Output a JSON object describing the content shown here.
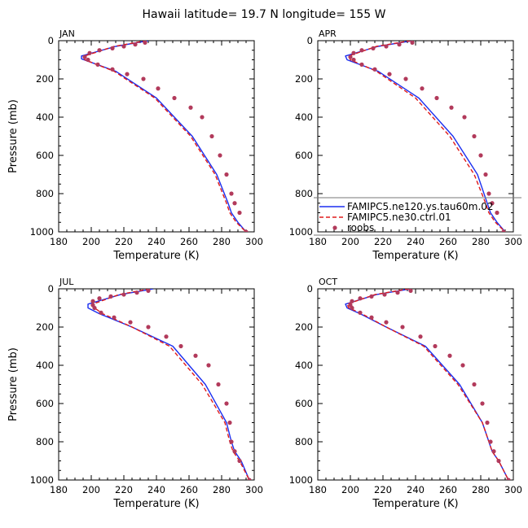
{
  "title": "Hawaii  latitude= 19.7 N longitude= 155 W",
  "colors": {
    "model_hi": "#1b2ef0",
    "model_lo": "#e01b1b",
    "obs": "#b23a5b"
  },
  "chart_data": [
    {
      "type": "line",
      "panel": "JAN",
      "xlabel": "Temperature (K)",
      "ylabel": "Pressure (mb)",
      "xlim": [
        180,
        300
      ],
      "ylim": [
        1000,
        0
      ],
      "xticks": [
        180,
        200,
        220,
        240,
        260,
        280,
        300
      ],
      "yticks": [
        0,
        200,
        400,
        600,
        800,
        1000
      ],
      "series": [
        {
          "name": "FAMIPC5.ne120.ys.tau60m.02",
          "style": "solid",
          "x": [
            235,
            215,
            194,
            194,
            215,
            240,
            262,
            277,
            284,
            286,
            290,
            295
          ],
          "y": [
            0,
            30,
            80,
            95,
            160,
            300,
            500,
            700,
            850,
            900,
            950,
            1000
          ]
        },
        {
          "name": "FAMIPC5.ne30.ctrl.01",
          "style": "dashed",
          "x": [
            234,
            214,
            196,
            196,
            214,
            239,
            261,
            276,
            283,
            285,
            289,
            295
          ],
          "y": [
            0,
            30,
            80,
            100,
            160,
            300,
            500,
            700,
            850,
            900,
            950,
            1000
          ]
        },
        {
          "name": "roobs",
          "style": "dots",
          "x": [
            233,
            227,
            220,
            213,
            205,
            199,
            196,
            198,
            204,
            213,
            222,
            232,
            241,
            251,
            261,
            268,
            274,
            279,
            283,
            286,
            288,
            291,
            295
          ],
          "y": [
            10,
            20,
            30,
            40,
            50,
            65,
            85,
            100,
            125,
            150,
            175,
            200,
            250,
            300,
            350,
            400,
            500,
            600,
            700,
            800,
            850,
            900,
            1000
          ]
        }
      ]
    },
    {
      "type": "line",
      "panel": "APR",
      "xlabel": "Temperature (K)",
      "ylabel": "",
      "xlim": [
        180,
        300
      ],
      "ylim": [
        1000,
        0
      ],
      "xticks": [
        180,
        200,
        220,
        240,
        260,
        280,
        300
      ],
      "yticks": [
        0,
        200,
        400,
        600,
        800,
        1000
      ],
      "series": [
        {
          "name": "FAMIPC5.ne120.ys.tau60m.02",
          "style": "solid",
          "x": [
            238,
            217,
            197,
            198,
            217,
            242,
            263,
            278,
            284,
            286,
            290,
            295
          ],
          "y": [
            0,
            30,
            80,
            100,
            160,
            300,
            500,
            700,
            850,
            900,
            950,
            1000
          ]
        },
        {
          "name": "FAMIPC5.ne30.ctrl.01",
          "style": "dashed",
          "x": [
            237,
            216,
            199,
            200,
            216,
            240,
            261,
            276,
            283,
            285,
            289,
            295
          ],
          "y": [
            0,
            30,
            80,
            100,
            160,
            300,
            500,
            700,
            850,
            900,
            950,
            1000
          ]
        },
        {
          "name": "roobs",
          "style": "dots",
          "x": [
            238,
            230,
            222,
            214,
            207,
            202,
            200,
            202,
            207,
            215,
            224,
            234,
            244,
            253,
            262,
            270,
            276,
            280,
            283,
            285,
            287,
            290,
            294
          ],
          "y": [
            10,
            20,
            30,
            40,
            50,
            65,
            85,
            100,
            125,
            150,
            175,
            200,
            250,
            300,
            350,
            400,
            500,
            600,
            700,
            800,
            850,
            900,
            1000
          ]
        }
      ]
    },
    {
      "type": "line",
      "panel": "JUL",
      "xlabel": "Temperature (K)",
      "ylabel": "Pressure (mb)",
      "xlim": [
        180,
        300
      ],
      "ylim": [
        1000,
        0
      ],
      "xticks": [
        180,
        200,
        220,
        240,
        260,
        280,
        300
      ],
      "yticks": [
        0,
        200,
        400,
        600,
        800,
        1000
      ],
      "series": [
        {
          "name": "FAMIPC5.ne120.ys.tau60m.02",
          "style": "solid",
          "x": [
            238,
            218,
            198,
            198,
            205,
            225,
            250,
            270,
            283,
            286,
            288,
            292,
            297
          ],
          "y": [
            0,
            30,
            80,
            100,
            130,
            200,
            300,
            500,
            700,
            800,
            850,
            900,
            1000
          ]
        },
        {
          "name": "FAMIPC5.ne30.ctrl.01",
          "style": "dashed",
          "x": [
            236,
            217,
            201,
            202,
            207,
            225,
            248,
            268,
            282,
            285,
            287,
            291,
            297
          ],
          "y": [
            0,
            30,
            80,
            100,
            130,
            200,
            300,
            500,
            700,
            800,
            850,
            900,
            1000
          ]
        },
        {
          "name": "roobs",
          "style": "dots",
          "x": [
            235,
            228,
            220,
            212,
            205,
            201,
            201,
            202,
            206,
            214,
            224,
            235,
            246,
            255,
            264,
            272,
            278,
            283,
            285,
            286,
            288,
            291,
            297
          ],
          "y": [
            10,
            20,
            30,
            40,
            50,
            65,
            85,
            100,
            125,
            150,
            175,
            200,
            250,
            300,
            350,
            400,
            500,
            600,
            700,
            800,
            850,
            900,
            1000
          ]
        }
      ]
    },
    {
      "type": "line",
      "panel": "OCT",
      "xlabel": "Temperature (K)",
      "ylabel": "",
      "xlim": [
        180,
        300
      ],
      "ylim": [
        1000,
        0
      ],
      "xticks": [
        180,
        200,
        220,
        240,
        260,
        280,
        300
      ],
      "yticks": [
        0,
        200,
        400,
        600,
        800,
        1000
      ],
      "series": [
        {
          "name": "FAMIPC5.ne120.ys.tau60m.02",
          "style": "solid",
          "x": [
            237,
            216,
            197,
            198,
            206,
            222,
            246,
            267,
            281,
            285,
            287,
            291,
            297
          ],
          "y": [
            0,
            30,
            80,
            100,
            130,
            200,
            300,
            500,
            700,
            800,
            850,
            900,
            1000
          ]
        },
        {
          "name": "FAMIPC5.ne30.ctrl.01",
          "style": "dashed",
          "x": [
            236,
            215,
            198,
            199,
            207,
            222,
            245,
            266,
            281,
            285,
            287,
            291,
            297
          ],
          "y": [
            0,
            30,
            80,
            100,
            130,
            200,
            300,
            500,
            700,
            800,
            850,
            900,
            1000
          ]
        },
        {
          "name": "roobs",
          "style": "dots",
          "x": [
            237,
            229,
            221,
            213,
            206,
            201,
            200,
            201,
            206,
            213,
            222,
            232,
            243,
            252,
            261,
            269,
            276,
            281,
            284,
            286,
            288,
            291,
            297
          ],
          "y": [
            10,
            20,
            30,
            40,
            50,
            65,
            85,
            100,
            125,
            150,
            175,
            200,
            250,
            300,
            350,
            400,
            500,
            600,
            700,
            800,
            850,
            900,
            1000
          ]
        }
      ]
    }
  ],
  "legend": {
    "entries": [
      {
        "label": "FAMIPC5.ne120.ys.tau60m.02",
        "style": "solid"
      },
      {
        "label": "FAMIPC5.ne30.ctrl.01",
        "style": "dashed"
      },
      {
        "label": "roobs",
        "style": "dots"
      }
    ]
  }
}
